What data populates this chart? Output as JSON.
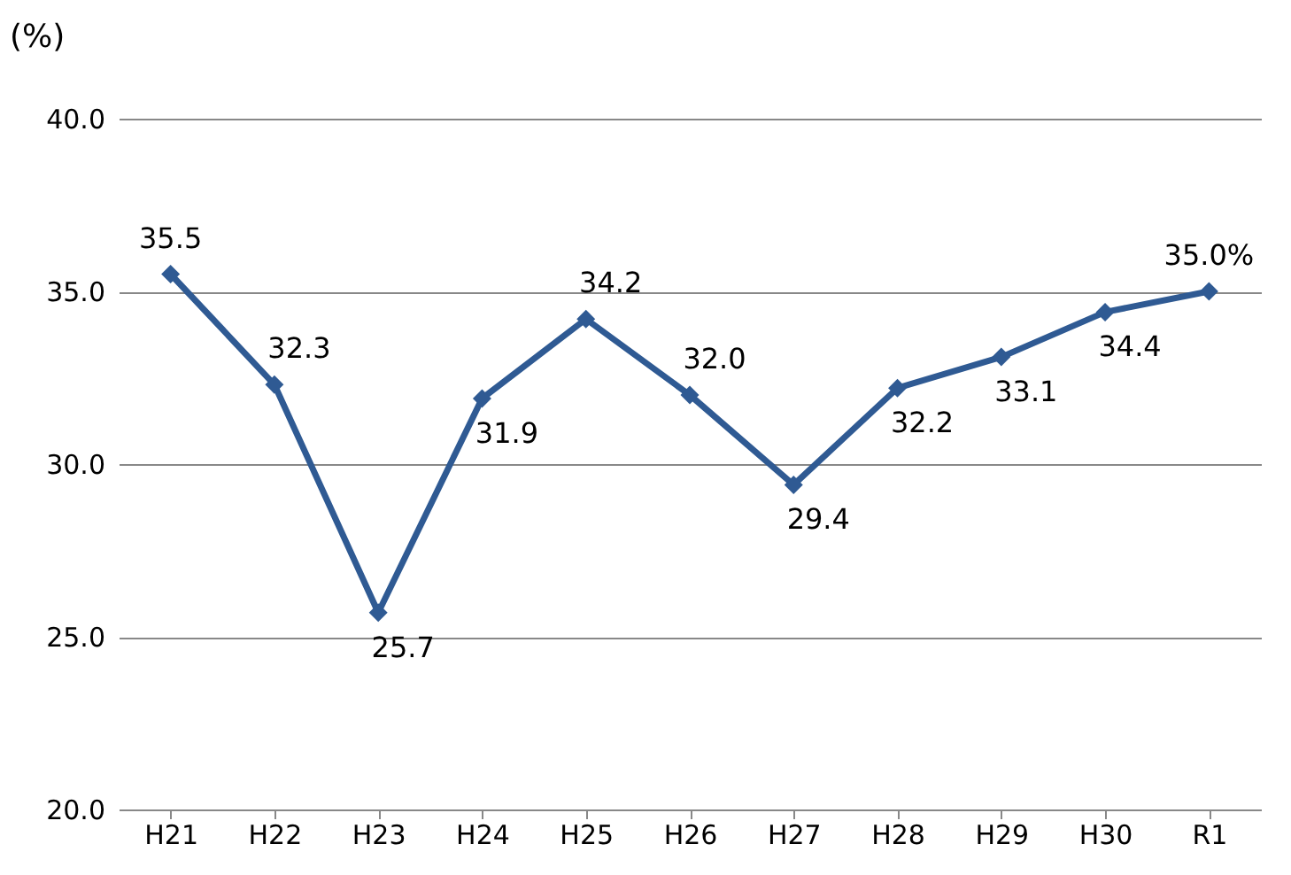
{
  "chart_data": {
    "type": "line",
    "ylabel": "(%)",
    "categories": [
      "H21",
      "H22",
      "H23",
      "H24",
      "H25",
      "H26",
      "H27",
      "H28",
      "H29",
      "H30",
      "R1"
    ],
    "series": [
      {
        "color": "#2f5a93",
        "values": [
          35.5,
          32.3,
          25.7,
          31.9,
          34.2,
          32.0,
          29.4,
          32.2,
          33.1,
          34.4,
          35.0
        ],
        "value_labels": [
          "35.5",
          "32.3",
          "25.7",
          "31.9",
          "34.2",
          "32.0",
          "29.4",
          "32.2",
          "33.1",
          "34.4",
          "35.0%"
        ]
      }
    ],
    "ylim": [
      20,
      40
    ],
    "yticks": [
      {
        "value": 20,
        "label": "20.0"
      },
      {
        "value": 25,
        "label": "25.0"
      },
      {
        "value": 30,
        "label": "30.0"
      },
      {
        "value": 35,
        "label": "35.0"
      },
      {
        "value": 40,
        "label": "40.0"
      }
    ],
    "grid": "y",
    "marker": "diamond",
    "line_style": "solid"
  }
}
